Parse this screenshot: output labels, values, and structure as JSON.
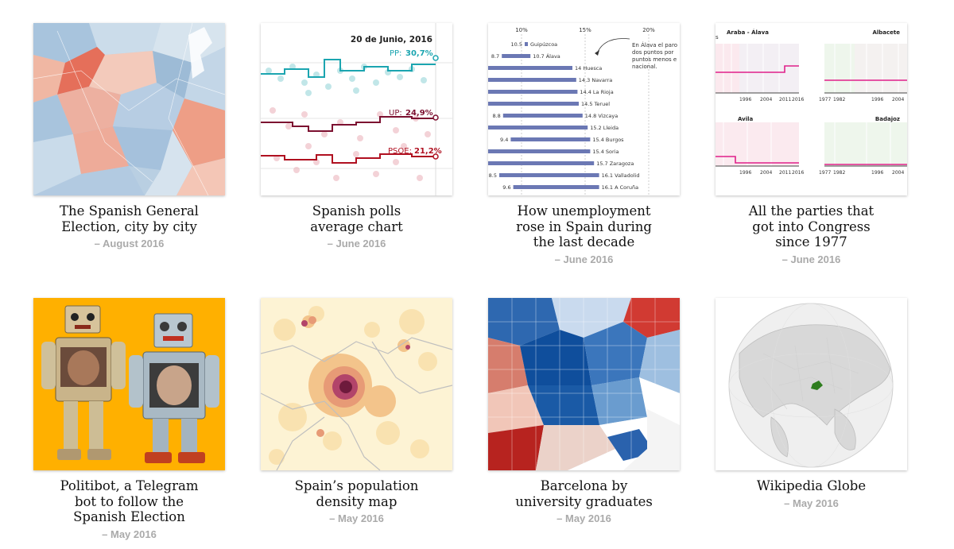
{
  "cards": [
    {
      "title": "The Spanish General Election, city by city",
      "date": "– August 2016"
    },
    {
      "title": "Spanish polls average chart",
      "date": "– June 2016",
      "thumb": {
        "date_label": "20 de Junio, 2016",
        "pp_label": "PP:",
        "pp_value": "30,7%",
        "up_label": "UP:",
        "up_value": "24,9%",
        "psoe_label": "PSOE:",
        "psoe_value": "21,2%"
      }
    },
    {
      "title": "How unemployment rose in Spain during the last decade",
      "date": "– June 2016",
      "thumb": {
        "ticks": [
          "10%",
          "15%",
          "20%"
        ],
        "annotation": [
          "En Álava el paro",
          "dos puntos por",
          "puntos menos e",
          "nacional."
        ],
        "rows": [
          {
            "start": "10.5",
            "end": "Guipúzcoa",
            "v0": 10.5,
            "v1": 10.5
          },
          {
            "start": "8.7",
            "end": "10.7  Álava",
            "v0": 8.7,
            "v1": 10.7
          },
          {
            "start": "",
            "end": "14  Huesca",
            "v0": 8.2,
            "v1": 14
          },
          {
            "start": "",
            "end": "14.3  Navarra",
            "v0": 8.2,
            "v1": 14.3
          },
          {
            "start": "",
            "end": "14.4  La Rioja",
            "v0": 8.2,
            "v1": 14.4
          },
          {
            "start": "",
            "end": "14.5  Teruel",
            "v0": 8.2,
            "v1": 14.5
          },
          {
            "start": "8.8",
            "end": "14.8  Vizcaya",
            "v0": 8.8,
            "v1": 14.8
          },
          {
            "start": "",
            "end": "15.2  Lleida",
            "v0": 8.2,
            "v1": 15.2
          },
          {
            "start": "9.4",
            "end": "15.4  Burgos",
            "v0": 9.4,
            "v1": 15.4
          },
          {
            "start": "",
            "end": "15.4  Soria",
            "v0": 8.2,
            "v1": 15.4
          },
          {
            "start": "",
            "end": "15.7  Zaragoza",
            "v0": 8.2,
            "v1": 15.7
          },
          {
            "start": "8.5",
            "end": "16.1  Valladolid",
            "v0": 8.5,
            "v1": 16.1
          },
          {
            "start": "9.6",
            "end": "16.1  A Coruña",
            "v0": 9.6,
            "v1": 16.1
          }
        ]
      }
    },
    {
      "title": "All the parties that got into Congress since 1977",
      "date": "– June 2016",
      "thumb": {
        "p1": "Araba - Álava",
        "p2": "Albacete",
        "p3": "Avila",
        "p4": "Badajoz",
        "axis_left": [
          "1996",
          "2004",
          "2011",
          "2016"
        ],
        "axis_right": [
          "1977",
          "1982",
          "1996",
          "2004"
        ],
        "corner": "s"
      }
    },
    {
      "title": "Politibot, a Telegram bot to follow the Spanish Election",
      "date": "– May 2016"
    },
    {
      "title": "Spain’s population density map",
      "date": "– May 2016"
    },
    {
      "title": "Barcelona by university graduates",
      "date": "– May 2016"
    },
    {
      "title": "Wikipedia Globe",
      "date": "– May 2016"
    }
  ],
  "colors": {
    "title": "#111111",
    "date": "#aaaaaa",
    "pp": "#1ba5b0",
    "up": "#7c1030",
    "psoe": "#b01020",
    "bar": "#6b78b4",
    "robot_bg": "#ffb000",
    "pink_line": "#e0208a"
  }
}
